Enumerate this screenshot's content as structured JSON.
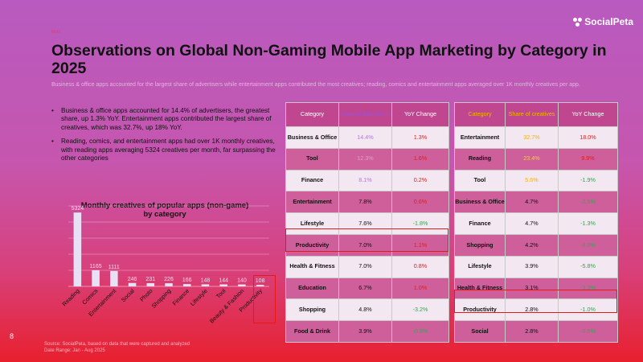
{
  "brand": {
    "name": "SocialPeta",
    "small_tag": "Mobi"
  },
  "title": "Observations on Global Non-Gaming Mobile App Marketing by Category in 2025",
  "subtitle": "Business & office apps accounted for the largest share of advertisers while entertainment apps contributed the most creatives; reading, comics and entertainment apps averaged over 1K monthly creatives per app.",
  "bullets": [
    "Business & office apps accounted for 14.4% of advertisers, the greatest share, up 1.3% YoY. Entertainment apps contributed the largest share of creatives, which was 32.7%, up 18% YoY.",
    "Reading, comics, and entertainment apps had over 1K monthly creatives, with reading apps averaging 5324 creatives per month, far surpassing the other categories"
  ],
  "chart_data": {
    "type": "bar",
    "title": "Monthly creatives of popular apps (non-game) by category",
    "categories": [
      "Reading",
      "Comics",
      "Entertainment",
      "Social",
      "Photo",
      "Shopping",
      "Finance",
      "Lifestyle",
      "Tool",
      "Beauty & Fashion",
      "Productivity"
    ],
    "values": [
      5324,
      1165,
      1111,
      246,
      231,
      226,
      166,
      148,
      144,
      140,
      108
    ],
    "data_labels": [
      "5324",
      "1165",
      "1111",
      "246",
      "231",
      "226",
      "166",
      "148",
      "144",
      "140",
      "108"
    ],
    "ylim": [
      0,
      5800
    ],
    "grid": true,
    "highlight": "Productivity",
    "colors": {
      "bar": "#e8e0f4",
      "grid": "#ffffff",
      "label": "#e8e0f4",
      "highlight_box": "#e61919"
    }
  },
  "table_advertisers": {
    "headers": [
      "Category",
      "Share of advertisers",
      "YoY Change"
    ],
    "header_colors": [
      "#ffffff",
      "#a24fcf",
      "#ffffff"
    ],
    "rows": [
      {
        "category": "Business & Office",
        "share": "14.4%",
        "yoy": "1.3%",
        "bg": "#f3e7f1",
        "share_color": "#b07ad8",
        "yoy_color": "#e61919"
      },
      {
        "category": "Tool",
        "share": "12.3%",
        "yoy": "1.6%",
        "bg": "#cf5f9b",
        "share_color": "#e59ad2",
        "yoy_color": "#e61919"
      },
      {
        "category": "Finance",
        "share": "8.1%",
        "yoy": "0.2%",
        "bg": "#f3e7f1",
        "share_color": "#b07ad8",
        "yoy_color": "#e61919"
      },
      {
        "category": "Entertainment",
        "share": "7.8%",
        "yoy": "0.6%",
        "bg": "#cf5f9b",
        "share_color": "#111111",
        "yoy_color": "#e61919"
      },
      {
        "category": "Lifestyle",
        "share": "7.6%",
        "yoy": "-1.8%",
        "bg": "#f3e7f1",
        "share_color": "#111111",
        "yoy_color": "#2fa84f"
      },
      {
        "category": "Productivity",
        "share": "7.0%",
        "yoy": "1.1%",
        "bg": "#cf5f9b",
        "share_color": "#111111",
        "yoy_color": "#e61919"
      },
      {
        "category": "Health & Fitness",
        "share": "7.0%",
        "yoy": "0.8%",
        "bg": "#f3e7f1",
        "share_color": "#111111",
        "yoy_color": "#e61919"
      },
      {
        "category": "Education",
        "share": "6.7%",
        "yoy": "1.0%",
        "bg": "#cf5f9b",
        "share_color": "#111111",
        "yoy_color": "#e61919"
      },
      {
        "category": "Shopping",
        "share": "4.8%",
        "yoy": "-3.2%",
        "bg": "#f3e7f1",
        "share_color": "#111111",
        "yoy_color": "#2fa84f"
      },
      {
        "category": "Food & Drink",
        "share": "3.9%",
        "yoy": "-0.5%",
        "bg": "#cf5f9b",
        "share_color": "#111111",
        "yoy_color": "#2fa84f"
      }
    ]
  },
  "table_creatives": {
    "headers": [
      "Category",
      "Share of creatives",
      "YoY Change"
    ],
    "header_colors": [
      "#f4b400",
      "#f4b400",
      "#ffffff"
    ],
    "rows": [
      {
        "category": "Entertainment",
        "share": "32.7%",
        "yoy": "18.0%",
        "bg": "#f3e7f1",
        "share_color": "#f4b400",
        "yoy_color": "#e61919"
      },
      {
        "category": "Reading",
        "share": "23.4%",
        "yoy": "9.9%",
        "bg": "#cf5f9b",
        "share_color": "#f7c84a",
        "yoy_color": "#e61919"
      },
      {
        "category": "Tool",
        "share": "5.6%",
        "yoy": "-1.9%",
        "bg": "#f3e7f1",
        "share_color": "#f4b400",
        "yoy_color": "#2fa84f"
      },
      {
        "category": "Business & Office",
        "share": "4.7%",
        "yoy": "-2.5%",
        "bg": "#cf5f9b",
        "share_color": "#111111",
        "yoy_color": "#2fa84f"
      },
      {
        "category": "Finance",
        "share": "4.7%",
        "yoy": "-1.3%",
        "bg": "#f3e7f1",
        "share_color": "#111111",
        "yoy_color": "#2fa84f"
      },
      {
        "category": "Shopping",
        "share": "4.2%",
        "yoy": "-8.0%",
        "bg": "#cf5f9b",
        "share_color": "#111111",
        "yoy_color": "#2fa84f"
      },
      {
        "category": "Lifestyle",
        "share": "3.9%",
        "yoy": "-5.8%",
        "bg": "#f3e7f1",
        "share_color": "#111111",
        "yoy_color": "#2fa84f"
      },
      {
        "category": "Health & Fitness",
        "share": "3.1%",
        "yoy": "-3.3%",
        "bg": "#cf5f9b",
        "share_color": "#111111",
        "yoy_color": "#2fa84f"
      },
      {
        "category": "Productivity",
        "share": "2.8%",
        "yoy": "-1.0%",
        "bg": "#f3e7f1",
        "share_color": "#111111",
        "yoy_color": "#2fa84f"
      },
      {
        "category": "Social",
        "share": "2.8%",
        "yoy": "-0.5%",
        "bg": "#cf5f9b",
        "share_color": "#111111",
        "yoy_color": "#2fa84f"
      }
    ]
  },
  "page_number": "8",
  "source": [
    "Source: SocialPeta, based on data that were captured and analyzed",
    "Date Range: Jan - Aug 2025"
  ]
}
